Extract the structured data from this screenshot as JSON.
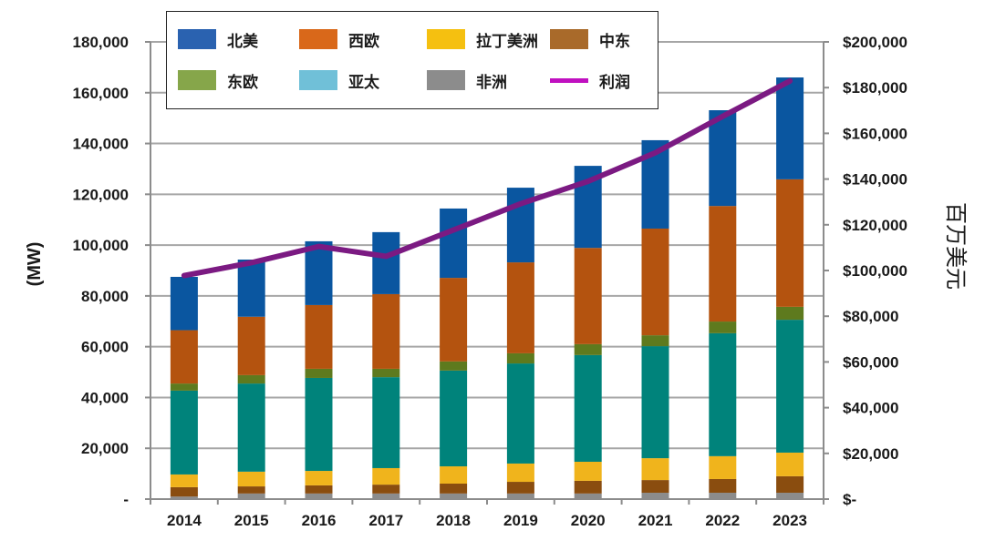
{
  "chart_data": {
    "type": "bar",
    "subtype": "stacked-bar-with-line",
    "title": "",
    "categories": [
      "2014",
      "2015",
      "2016",
      "2017",
      "2018",
      "2019",
      "2020",
      "2021",
      "2022",
      "2023"
    ],
    "series": [
      {
        "name": "非洲",
        "color": "#8c8c8c",
        "axis": "left",
        "values": [
          1000,
          2200,
          2200,
          2200,
          2200,
          2200,
          2200,
          2500,
          2500,
          2500
        ]
      },
      {
        "name": "中东",
        "color": "#8a4d0f",
        "axis": "left",
        "values": [
          3700,
          2800,
          3200,
          3500,
          3900,
          4600,
          5000,
          5000,
          5400,
          6500
        ]
      },
      {
        "name": "拉丁美洲",
        "color": "#f0b41c",
        "axis": "left",
        "values": [
          5000,
          5800,
          5700,
          6500,
          6800,
          7200,
          7500,
          8600,
          9000,
          9300
        ]
      },
      {
        "name": "亚太",
        "color": "#00837b",
        "axis": "left",
        "values": [
          33000,
          34700,
          36600,
          35800,
          37700,
          39400,
          42000,
          44100,
          48400,
          52300
        ]
      },
      {
        "name": "东欧",
        "color": "#5e7a1e",
        "axis": "left",
        "values": [
          2800,
          3300,
          3600,
          3300,
          3600,
          4000,
          4300,
          4300,
          4600,
          5100
        ]
      },
      {
        "name": "西欧",
        "color": "#b4530f",
        "axis": "left",
        "values": [
          21000,
          23000,
          25100,
          29400,
          32900,
          35800,
          37900,
          42000,
          45500,
          50200
        ]
      },
      {
        "name": "北美",
        "color": "#0a56a0",
        "axis": "left",
        "values": [
          21000,
          22500,
          25100,
          24400,
          27300,
          29400,
          32300,
          34800,
          37700,
          40100
        ]
      }
    ],
    "line_series": {
      "name": "利润",
      "type": "line",
      "color": "#7b1a82",
      "axis": "right",
      "values": [
        97800,
        103400,
        110500,
        106200,
        117700,
        129200,
        139000,
        151500,
        167400,
        182900
      ]
    },
    "xlabel": "",
    "ylabel": "(MW)",
    "ylabel_right": "百万美元",
    "ylim": [
      0,
      180000
    ],
    "ylim_right": [
      0,
      200000
    ],
    "yticks": [
      "-",
      "20,000",
      "40,000",
      "60,000",
      "80,000",
      "100,000",
      "120,000",
      "140,000",
      "160,000",
      "180,000"
    ],
    "yticks_right": [
      "$-",
      "$20,000",
      "$40,000",
      "$60,000",
      "$80,000",
      "$100,000",
      "$120,000",
      "$140,000",
      "$160,000",
      "$180,000",
      "$200,000"
    ],
    "grid": true,
    "legend_position": "top",
    "legend": [
      {
        "label": "北美",
        "color": "#2a62b0",
        "kind": "box"
      },
      {
        "label": "西欧",
        "color": "#d9681a",
        "kind": "box"
      },
      {
        "label": "拉丁美洲",
        "color": "#f5c010",
        "kind": "box"
      },
      {
        "label": "中东",
        "color": "#a96a2a",
        "kind": "box"
      },
      {
        "label": "东欧",
        "color": "#86a64a",
        "kind": "box"
      },
      {
        "label": "亚太",
        "color": "#70c0d8",
        "kind": "box"
      },
      {
        "label": "非洲",
        "color": "#8c8c8c",
        "kind": "box"
      },
      {
        "label": "利润",
        "color": "#c010c0",
        "kind": "line"
      }
    ]
  }
}
